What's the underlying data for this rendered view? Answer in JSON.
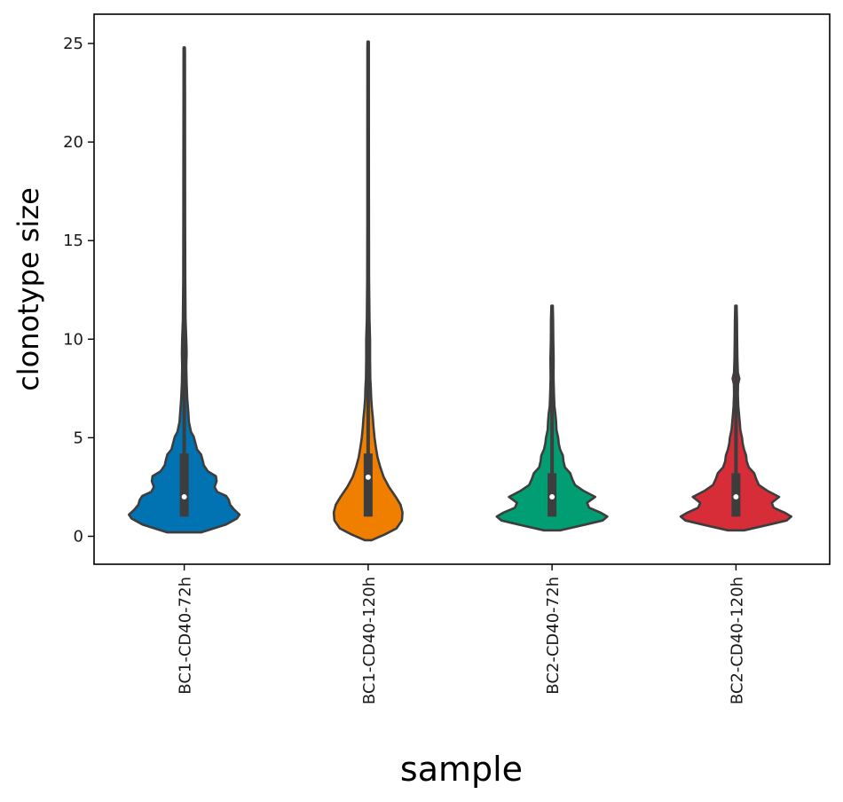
{
  "chart_data": {
    "type": "violin",
    "title": "",
    "xlabel": "sample",
    "ylabel": "clonotype size",
    "ylim": [
      -1.4,
      26.5
    ],
    "yticks": [
      0,
      5,
      10,
      15,
      20,
      25
    ],
    "grid": false,
    "legend": "none",
    "categories": [
      "BC1-CD40-72h",
      "BC1-CD40-120h",
      "BC2-CD40-72h",
      "BC2-CD40-120h"
    ],
    "series": [
      {
        "name": "BC1-CD40-72h",
        "color": "#0173b2",
        "range": [
          0.2,
          24.8
        ],
        "q1": 1.0,
        "median": 2.0,
        "q3": 4.2,
        "whisker_low": 1.0,
        "whisker_high": 24.8,
        "density": [
          [
            0.2,
            0.25
          ],
          [
            0.6,
            0.62
          ],
          [
            0.9,
            0.78
          ],
          [
            1.1,
            0.82
          ],
          [
            1.35,
            0.74
          ],
          [
            1.6,
            0.68
          ],
          [
            1.85,
            0.66
          ],
          [
            2.05,
            0.62
          ],
          [
            2.25,
            0.49
          ],
          [
            2.5,
            0.45
          ],
          [
            2.8,
            0.48
          ],
          [
            3.05,
            0.47
          ],
          [
            3.3,
            0.35
          ],
          [
            3.6,
            0.29
          ],
          [
            3.9,
            0.27
          ],
          [
            4.15,
            0.25
          ],
          [
            4.4,
            0.19
          ],
          [
            4.8,
            0.16
          ],
          [
            5.05,
            0.14
          ],
          [
            5.3,
            0.1
          ],
          [
            5.8,
            0.07
          ],
          [
            6.3,
            0.06
          ],
          [
            7.0,
            0.045
          ],
          [
            7.8,
            0.035
          ],
          [
            8.6,
            0.03
          ],
          [
            9.3,
            0.035
          ],
          [
            10.0,
            0.03
          ],
          [
            11.0,
            0.02
          ],
          [
            13,
            0.015
          ],
          [
            16,
            0.013
          ],
          [
            20,
            0.012
          ],
          [
            24.5,
            0.01
          ],
          [
            24.8,
            0.008
          ]
        ]
      },
      {
        "name": "BC1-CD40-120h",
        "color": "#f07f00",
        "range": [
          -0.2,
          25.1
        ],
        "q1": 1.0,
        "median": 3.0,
        "q3": 4.2,
        "whisker_low": 1.0,
        "whisker_high": 25.1,
        "density": [
          [
            -0.2,
            0.05
          ],
          [
            0.1,
            0.25
          ],
          [
            0.4,
            0.42
          ],
          [
            0.8,
            0.5
          ],
          [
            1.2,
            0.51
          ],
          [
            1.6,
            0.48
          ],
          [
            2.0,
            0.41
          ],
          [
            2.5,
            0.31
          ],
          [
            3.0,
            0.23
          ],
          [
            3.5,
            0.18
          ],
          [
            4.0,
            0.14
          ],
          [
            4.5,
            0.115
          ],
          [
            5.0,
            0.095
          ],
          [
            5.5,
            0.08
          ],
          [
            6.0,
            0.07
          ],
          [
            6.5,
            0.055
          ],
          [
            7.0,
            0.045
          ],
          [
            7.5,
            0.04
          ],
          [
            8.0,
            0.032
          ],
          [
            9.0,
            0.028
          ],
          [
            10.0,
            0.028
          ],
          [
            11.0,
            0.02
          ],
          [
            13,
            0.014
          ],
          [
            16,
            0.012
          ],
          [
            20,
            0.011
          ],
          [
            24.8,
            0.01
          ],
          [
            25.1,
            0.008
          ]
        ]
      },
      {
        "name": "BC2-CD40-72h",
        "color": "#029e73",
        "range": [
          0.3,
          11.7
        ],
        "q1": 1.0,
        "median": 2.0,
        "q3": 3.2,
        "whisker_low": 1.0,
        "whisker_high": 11.7,
        "density": [
          [
            0.3,
            0.12
          ],
          [
            0.6,
            0.5
          ],
          [
            0.8,
            0.75
          ],
          [
            1.0,
            0.82
          ],
          [
            1.2,
            0.72
          ],
          [
            1.45,
            0.55
          ],
          [
            1.7,
            0.52
          ],
          [
            2.0,
            0.64
          ],
          [
            2.3,
            0.47
          ],
          [
            2.6,
            0.34
          ],
          [
            2.9,
            0.3
          ],
          [
            3.2,
            0.27
          ],
          [
            3.5,
            0.19
          ],
          [
            3.8,
            0.17
          ],
          [
            4.1,
            0.16
          ],
          [
            4.4,
            0.12
          ],
          [
            4.7,
            0.1
          ],
          [
            5.0,
            0.09
          ],
          [
            5.4,
            0.065
          ],
          [
            5.8,
            0.06
          ],
          [
            6.2,
            0.05
          ],
          [
            6.6,
            0.035
          ],
          [
            7.2,
            0.028
          ],
          [
            8.0,
            0.022
          ],
          [
            9.0,
            0.024
          ],
          [
            10.0,
            0.018
          ],
          [
            11.0,
            0.016
          ],
          [
            11.7,
            0.01
          ]
        ]
      },
      {
        "name": "BC2-CD40-120h",
        "color": "#d62d39",
        "range": [
          0.3,
          11.7
        ],
        "q1": 1.0,
        "median": 2.0,
        "q3": 3.2,
        "whisker_low": 1.0,
        "whisker_high": 11.7,
        "density": [
          [
            0.3,
            0.12
          ],
          [
            0.6,
            0.5
          ],
          [
            0.8,
            0.75
          ],
          [
            1.0,
            0.82
          ],
          [
            1.2,
            0.72
          ],
          [
            1.45,
            0.56
          ],
          [
            1.7,
            0.53
          ],
          [
            2.0,
            0.64
          ],
          [
            2.3,
            0.47
          ],
          [
            2.6,
            0.34
          ],
          [
            2.9,
            0.3
          ],
          [
            3.2,
            0.27
          ],
          [
            3.5,
            0.19
          ],
          [
            3.8,
            0.16
          ],
          [
            4.1,
            0.15
          ],
          [
            4.4,
            0.12
          ],
          [
            4.7,
            0.1
          ],
          [
            5.0,
            0.09
          ],
          [
            5.4,
            0.065
          ],
          [
            5.8,
            0.055
          ],
          [
            6.2,
            0.045
          ],
          [
            6.6,
            0.035
          ],
          [
            7.2,
            0.028
          ],
          [
            7.7,
            0.03
          ],
          [
            8.0,
            0.05
          ],
          [
            8.3,
            0.028
          ],
          [
            9.0,
            0.022
          ],
          [
            10.0,
            0.018
          ],
          [
            11.0,
            0.015
          ],
          [
            11.7,
            0.01
          ]
        ]
      }
    ]
  }
}
